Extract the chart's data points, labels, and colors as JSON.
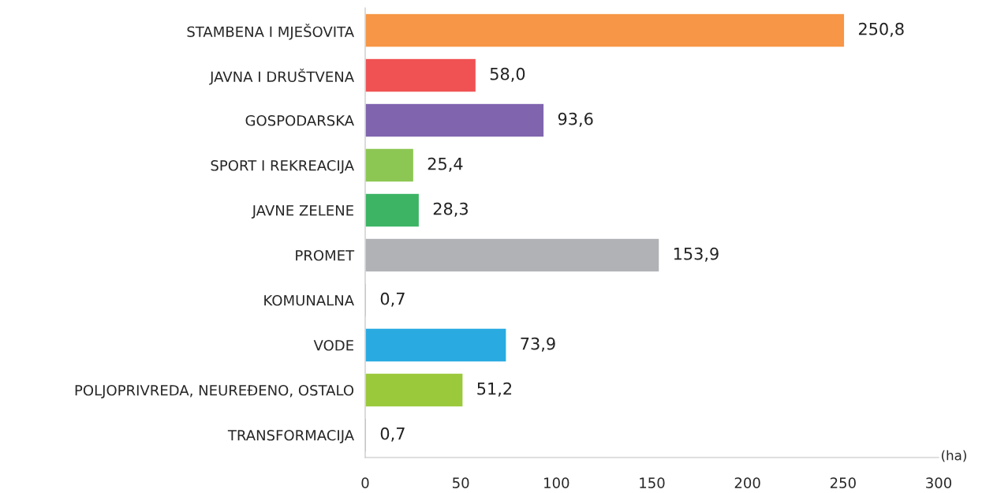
{
  "chart_data": {
    "type": "bar",
    "orientation": "horizontal",
    "xlabel": "(ha)",
    "categories": [
      "STAMBENA I MJEŠOVITA",
      "JAVNA I DRUŠTVENA",
      "GOSPODARSKA",
      "SPORT I REKREACIJA",
      "JAVNE ZELENE",
      "PROMET",
      "KOMUNALNA",
      "VODE",
      "POLJOPRIVREDA, NEUREĐENO, OSTALO",
      "TRANSFORMACIJA"
    ],
    "values": [
      250.8,
      58.0,
      93.6,
      25.4,
      28.3,
      153.9,
      0.7,
      73.9,
      51.2,
      0.7
    ],
    "value_labels": [
      "250,8",
      "58,0",
      "93,6",
      "25,4",
      "28,3",
      "153,9",
      "0,7",
      "73,9",
      "51,2",
      "0,7"
    ],
    "colors": [
      "#f79646",
      "#f05254",
      "#8064ae",
      "#8cc753",
      "#3cb464",
      "#b1b2b6",
      "#a08060",
      "#29abe2",
      "#9bc93c",
      "#5b5ea6"
    ],
    "xlim": [
      0,
      300
    ],
    "xticks": [
      0,
      50,
      100,
      150,
      200,
      250,
      300
    ],
    "grid": false,
    "legend": false
  }
}
